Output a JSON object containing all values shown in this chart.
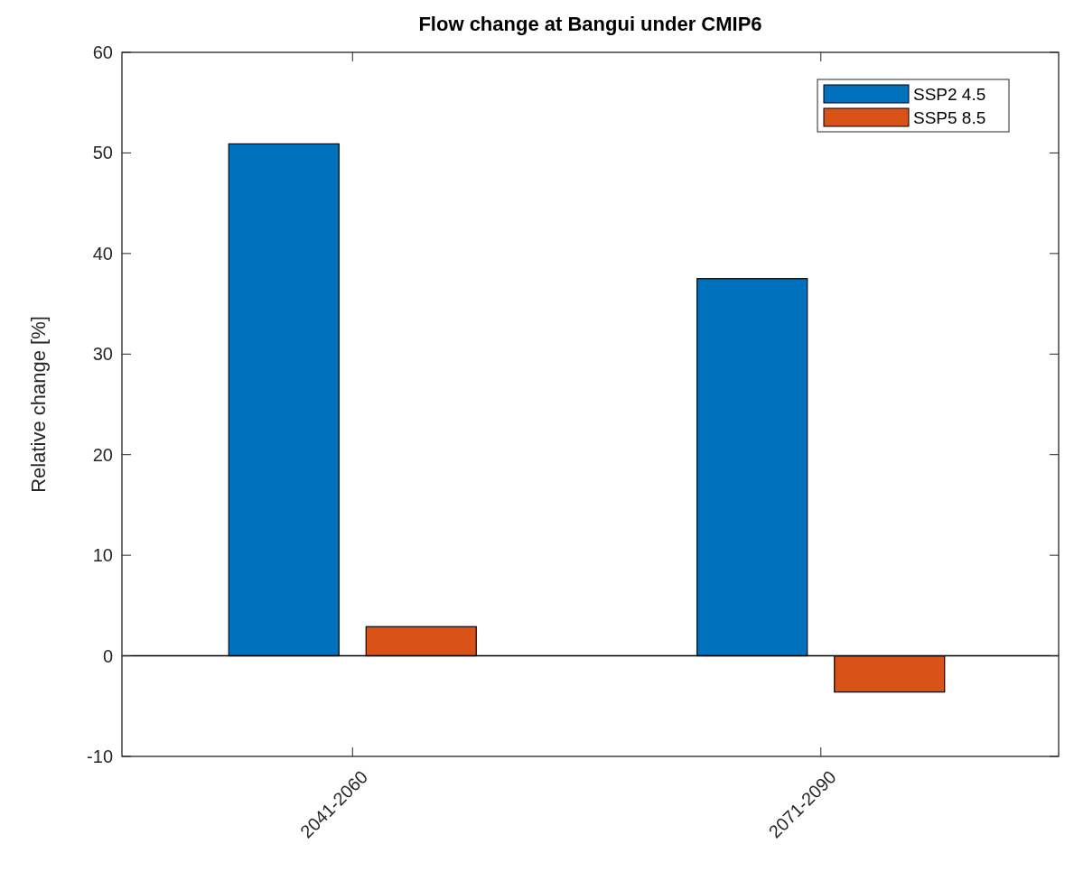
{
  "chart_data": {
    "type": "bar",
    "title": "Flow change at Bangui under CMIP6",
    "ylabel": "Relative change [%]",
    "categories": [
      "2041-2060",
      "2071-2090"
    ],
    "series": [
      {
        "name": "SSP2 4.5",
        "color": "#0072bd",
        "values": [
          50.9,
          37.5
        ]
      },
      {
        "name": "SSP5 8.5",
        "color": "#d95319",
        "values": [
          2.9,
          -3.6
        ]
      }
    ],
    "ylim": [
      -10,
      60
    ],
    "yticks": [
      -10,
      0,
      10,
      20,
      30,
      40,
      50,
      60
    ],
    "ref_lines": [
      {
        "axis": "y",
        "value": 0
      }
    ],
    "legend": "top right",
    "grid": false
  }
}
